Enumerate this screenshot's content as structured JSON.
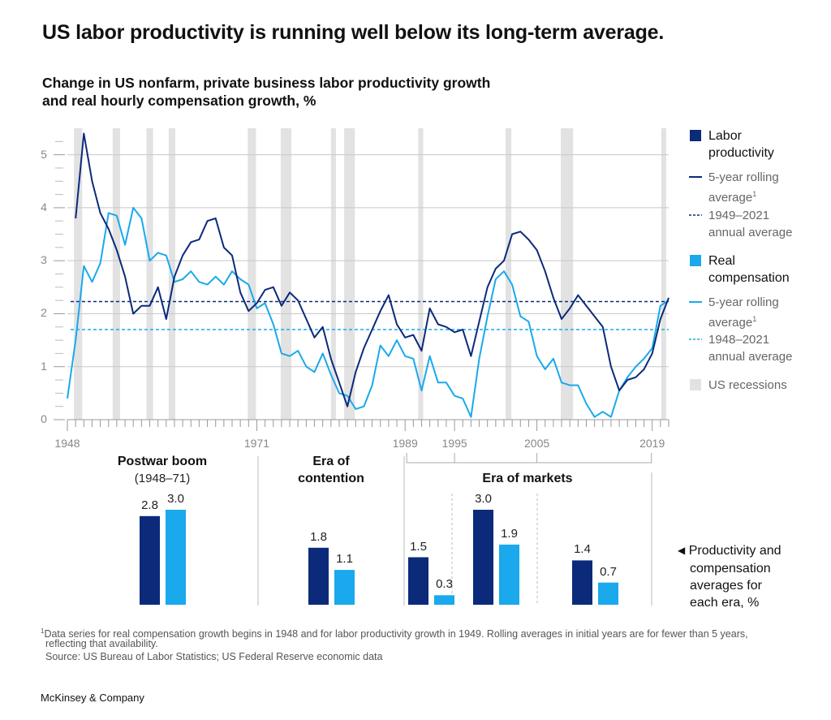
{
  "headline": "US labor productivity is running well below its long-term average.",
  "subtitle_line1": "Change in US nonfarm, private business labor productivity growth",
  "subtitle_line2": "and real hourly compensation growth, %",
  "colors": {
    "productivity": "#0b2a7a",
    "compensation": "#19a9ec",
    "recession": "#e2e2e2",
    "grid": "#c8c8c8",
    "axis_text": "#888888"
  },
  "chart_data": [
    {
      "type": "line",
      "title": "Change in US nonfarm, private business labor productivity growth and real hourly compensation growth, %",
      "xlim": [
        1948,
        2021
      ],
      "ylim": [
        0,
        5.5
      ],
      "y_ticks": [
        "0",
        "1",
        "2",
        "3",
        "4",
        "5"
      ],
      "x_tick_labels": [
        "1948",
        "1971",
        "1989",
        "1995",
        "2005",
        "2019"
      ],
      "series": [
        {
          "name": "Labor productivity 5-year rolling average",
          "x": [
            1949,
            1950,
            1951,
            1952,
            1953,
            1954,
            1955,
            1956,
            1957,
            1958,
            1959,
            1960,
            1961,
            1962,
            1963,
            1964,
            1965,
            1966,
            1967,
            1968,
            1969,
            1970,
            1971,
            1972,
            1973,
            1974,
            1975,
            1976,
            1977,
            1978,
            1979,
            1980,
            1981,
            1982,
            1983,
            1984,
            1985,
            1986,
            1987,
            1988,
            1989,
            1990,
            1991,
            1992,
            1993,
            1994,
            1995,
            1996,
            1997,
            1998,
            1999,
            2000,
            2001,
            2002,
            2003,
            2004,
            2005,
            2006,
            2007,
            2008,
            2009,
            2010,
            2011,
            2012,
            2013,
            2014,
            2015,
            2016,
            2017,
            2018,
            2019,
            2020,
            2021
          ],
          "values": [
            3.8,
            5.4,
            4.5,
            3.9,
            3.6,
            3.2,
            2.7,
            2.0,
            2.15,
            2.15,
            2.5,
            1.9,
            2.7,
            3.1,
            3.35,
            3.4,
            3.75,
            3.8,
            3.25,
            3.1,
            2.4,
            2.05,
            2.2,
            2.45,
            2.5,
            2.15,
            2.4,
            2.25,
            1.9,
            1.55,
            1.75,
            1.15,
            0.7,
            0.25,
            0.9,
            1.35,
            1.7,
            2.05,
            2.35,
            1.8,
            1.55,
            1.6,
            1.3,
            2.1,
            1.8,
            1.75,
            1.65,
            1.7,
            1.2,
            1.85,
            2.5,
            2.85,
            3.0,
            3.5,
            3.55,
            3.4,
            3.2,
            2.8,
            2.3,
            1.9,
            2.1,
            2.35,
            2.15,
            1.95,
            1.75,
            1.0,
            0.55,
            0.75,
            0.8,
            0.95,
            1.25,
            1.9,
            2.3
          ]
        },
        {
          "name": "Real compensation 5-year rolling average",
          "x": [
            1948,
            1949,
            1950,
            1951,
            1952,
            1953,
            1954,
            1955,
            1956,
            1957,
            1958,
            1959,
            1960,
            1961,
            1962,
            1963,
            1964,
            1965,
            1966,
            1967,
            1968,
            1969,
            1970,
            1971,
            1972,
            1973,
            1974,
            1975,
            1976,
            1977,
            1978,
            1979,
            1980,
            1981,
            1982,
            1983,
            1984,
            1985,
            1986,
            1987,
            1988,
            1989,
            1990,
            1991,
            1992,
            1993,
            1994,
            1995,
            1996,
            1997,
            1998,
            1999,
            2000,
            2001,
            2002,
            2003,
            2004,
            2005,
            2006,
            2007,
            2008,
            2009,
            2010,
            2011,
            2012,
            2013,
            2014,
            2015,
            2016,
            2017,
            2018,
            2019,
            2020,
            2021
          ],
          "values": [
            0.4,
            1.5,
            2.9,
            2.6,
            2.95,
            3.9,
            3.85,
            3.3,
            4.0,
            3.8,
            3.0,
            3.15,
            3.1,
            2.6,
            2.65,
            2.8,
            2.6,
            2.55,
            2.7,
            2.55,
            2.8,
            2.65,
            2.55,
            2.1,
            2.2,
            1.8,
            1.25,
            1.2,
            1.3,
            1.0,
            0.9,
            1.25,
            0.85,
            0.5,
            0.45,
            0.2,
            0.25,
            0.65,
            1.4,
            1.2,
            1.5,
            1.2,
            1.15,
            0.55,
            1.2,
            0.7,
            0.7,
            0.45,
            0.4,
            0.05,
            1.15,
            1.95,
            2.65,
            2.8,
            2.55,
            1.95,
            1.85,
            1.2,
            0.95,
            1.15,
            0.7,
            0.65,
            0.65,
            0.3,
            0.05,
            0.15,
            0.05,
            0.55,
            0.8,
            1.0,
            1.15,
            1.35,
            2.15,
            2.25
          ]
        },
        {
          "name": "Labor productivity 1949–2021 annual average",
          "value": 2.23
        },
        {
          "name": "Real compensation 1948–2021 annual average",
          "value": 1.7
        }
      ],
      "recessions": [
        [
          1948.8,
          1949.8
        ],
        [
          1953.5,
          1954.4
        ],
        [
          1957.6,
          1958.4
        ],
        [
          1960.3,
          1961.1
        ],
        [
          1969.9,
          1970.9
        ],
        [
          1973.9,
          1975.2
        ],
        [
          1980.0,
          1980.6
        ],
        [
          1981.6,
          1982.9
        ],
        [
          1990.6,
          1991.2
        ],
        [
          2001.2,
          2001.9
        ],
        [
          2007.9,
          2009.4
        ],
        [
          2020.1,
          2020.5
        ]
      ]
    },
    {
      "type": "bar",
      "title": "Productivity and compensation averages for each era, %",
      "categories": [
        "Postwar boom (1948–71)",
        "Era of contention",
        "Era of markets 1989–95",
        "Era of markets 1995–2005",
        "Era of markets 2005–19"
      ],
      "series": [
        {
          "name": "Labor productivity",
          "values": [
            2.8,
            1.8,
            1.5,
            3.0,
            1.4
          ]
        },
        {
          "name": "Real compensation",
          "values": [
            3.0,
            1.1,
            0.3,
            1.9,
            0.7
          ]
        }
      ],
      "value_labels": {
        "productivity": [
          "2.8",
          "1.8",
          "1.5",
          "3.0",
          "1.4"
        ],
        "compensation": [
          "3.0",
          "1.1",
          "0.3",
          "1.9",
          "0.7"
        ]
      }
    }
  ],
  "eras": {
    "postwar_title": "Postwar boom",
    "postwar_sub": "(1948–71)",
    "contention_title_1": "Era of",
    "contention_title_2": "contention",
    "markets_title": "Era of markets"
  },
  "legend": {
    "productivity_label_1": "Labor",
    "productivity_label_2": "productivity",
    "prod_rolling_1": "5-year rolling",
    "prod_rolling_2": "average",
    "footnote_mark": "1",
    "prod_avg_1": "1949–2021",
    "prod_avg_2": "annual average",
    "compensation_label_1": "Real",
    "compensation_label_2": "compensation",
    "comp_rolling_1": "5-year rolling",
    "comp_rolling_2": "average",
    "comp_avg_1": "1948–2021",
    "comp_avg_2": "annual average",
    "recessions": "US recessions",
    "bars_note_1": "Productivity and",
    "bars_note_2": "compensation",
    "bars_note_3": "averages for",
    "bars_note_4": "each era, %"
  },
  "footnotes": {
    "note_mark": "1",
    "note_line1": "Data series for real compensation growth begins in 1948 and for labor productivity growth in 1949. Rolling averages in initial years are for fewer than 5 years,",
    "note_line2": "reflecting that availability.",
    "source": "Source: US Bureau of Labor Statistics; US Federal Reserve economic data"
  },
  "brand": "McKinsey & Company"
}
